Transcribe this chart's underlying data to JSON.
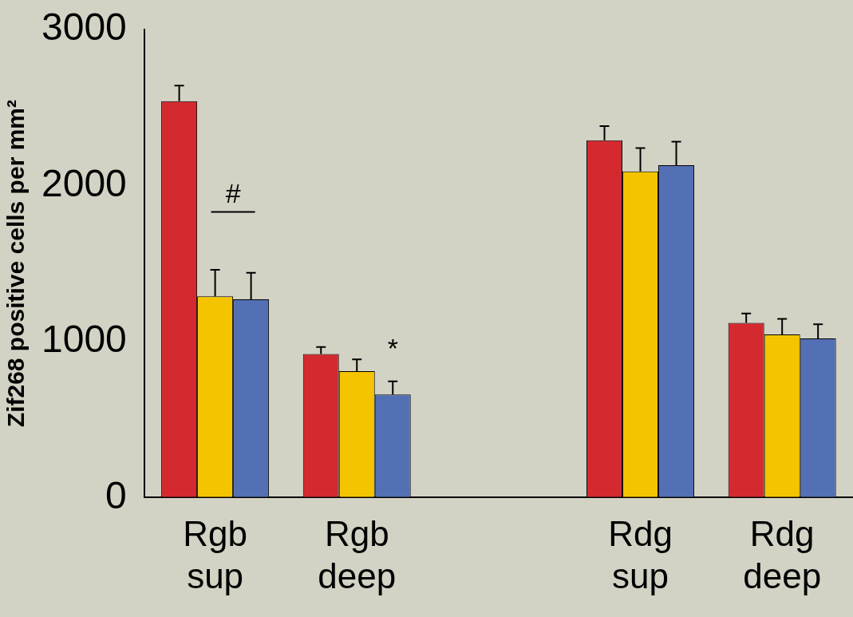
{
  "chart_data": {
    "type": "bar",
    "ylabel": "Zif268 positive cells per mm²",
    "categories": [
      "Rgb\nsup",
      "Rgb\ndeep",
      null,
      "Rdg\nsup",
      "Rdg\ndeep"
    ],
    "series": [
      {
        "color": "#d42a2f",
        "values": [
          2540,
          920,
          null,
          2290,
          1120
        ],
        "errors": [
          100,
          45,
          null,
          90,
          60
        ]
      },
      {
        "color": "#f5c400",
        "values": [
          1290,
          810,
          null,
          2090,
          1045
        ],
        "errors": [
          170,
          75,
          null,
          150,
          100
        ]
      },
      {
        "color": "#5470b4",
        "values": [
          1270,
          660,
          null,
          2130,
          1020
        ],
        "errors": [
          170,
          85,
          null,
          150,
          90
        ]
      }
    ],
    "ylim": [
      0,
      3000
    ],
    "yticks": [
      0,
      1000,
      2000,
      3000
    ],
    "grid": false,
    "legend": false,
    "annotations": [
      "#",
      "*"
    ]
  }
}
